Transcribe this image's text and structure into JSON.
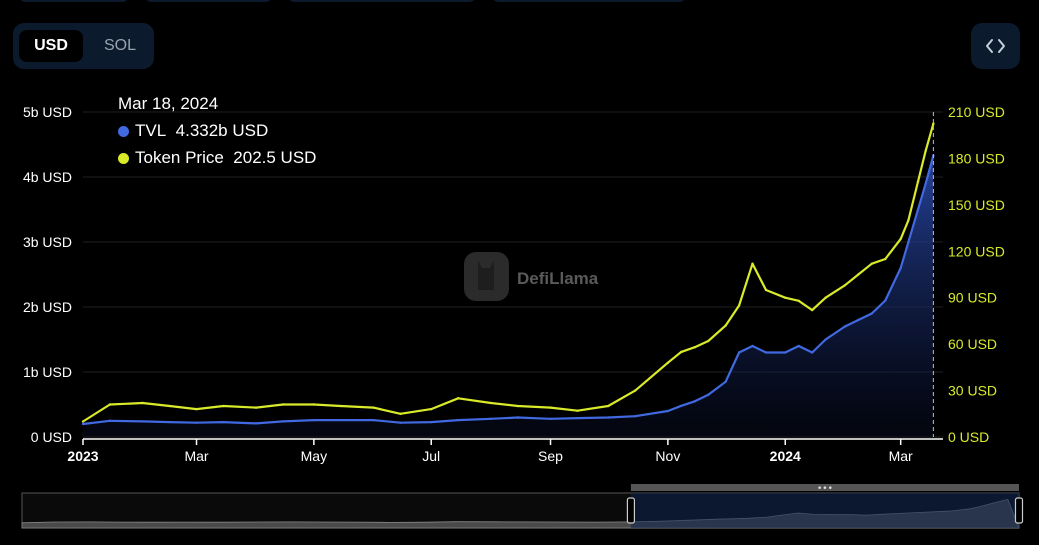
{
  "currency_toggle": {
    "options": [
      "USD",
      "SOL"
    ],
    "selected": "USD"
  },
  "embed_button": {
    "icon": "code-brackets-icon"
  },
  "tooltip": {
    "date": "Mar 18, 2024",
    "rows": [
      {
        "label": "TVL",
        "value": "4.332b USD",
        "color": "#4169e1"
      },
      {
        "label": "Token Price",
        "value": "202.5 USD",
        "color": "#d8ea29"
      }
    ]
  },
  "watermark": {
    "text": "DefiLlama"
  },
  "chart_data": {
    "type": "line",
    "title": "",
    "x": [
      "2023-01-01",
      "2023-01-15",
      "2023-02-01",
      "2023-02-15",
      "2023-03-01",
      "2023-03-15",
      "2023-04-01",
      "2023-04-15",
      "2023-05-01",
      "2023-05-15",
      "2023-06-01",
      "2023-06-15",
      "2023-07-01",
      "2023-07-15",
      "2023-08-01",
      "2023-08-15",
      "2023-09-01",
      "2023-09-15",
      "2023-10-01",
      "2023-10-15",
      "2023-11-01",
      "2023-11-08",
      "2023-11-15",
      "2023-11-22",
      "2023-12-01",
      "2023-12-08",
      "2023-12-15",
      "2023-12-22",
      "2024-01-01",
      "2024-01-08",
      "2024-01-15",
      "2024-01-22",
      "2024-02-01",
      "2024-02-08",
      "2024-02-15",
      "2024-02-22",
      "2024-03-01",
      "2024-03-05",
      "2024-03-10",
      "2024-03-14",
      "2024-03-18"
    ],
    "x_tick_labels": [
      "2023",
      "Mar",
      "May",
      "Jul",
      "Sep",
      "Nov",
      "2024",
      "Mar"
    ],
    "x_tick_dates": [
      "2023-01-01",
      "2023-03-01",
      "2023-05-01",
      "2023-07-01",
      "2023-09-01",
      "2023-11-01",
      "2024-01-01",
      "2024-03-01"
    ],
    "y_left": {
      "label": "",
      "ticks": [
        "0 USD",
        "1b USD",
        "2b USD",
        "3b USD",
        "4b USD",
        "5b USD"
      ],
      "range": [
        0,
        5000000000
      ]
    },
    "y_right": {
      "label": "",
      "ticks": [
        "0 USD",
        "30 USD",
        "60 USD",
        "90 USD",
        "120 USD",
        "150 USD",
        "180 USD",
        "210 USD"
      ],
      "range": [
        0,
        210
      ]
    },
    "series": [
      {
        "name": "TVL",
        "axis": "left",
        "color": "#4169e1",
        "values": [
          200000000,
          250000000,
          240000000,
          230000000,
          220000000,
          230000000,
          210000000,
          240000000,
          260000000,
          260000000,
          260000000,
          220000000,
          230000000,
          260000000,
          280000000,
          300000000,
          280000000,
          290000000,
          300000000,
          320000000,
          400000000,
          480000000,
          550000000,
          650000000,
          850000000,
          1300000000,
          1400000000,
          1300000000,
          1300000000,
          1400000000,
          1300000000,
          1500000000,
          1700000000,
          1800000000,
          1900000000,
          2100000000,
          2600000000,
          3000000000,
          3500000000,
          3900000000,
          4332000000
        ]
      },
      {
        "name": "Token Price",
        "axis": "right",
        "color": "#d8ea29",
        "values": [
          10,
          21,
          22,
          20,
          18,
          20,
          19,
          21,
          21,
          20,
          19,
          15,
          18,
          25,
          22,
          20,
          19,
          17,
          20,
          30,
          48,
          55,
          58,
          62,
          72,
          85,
          112,
          95,
          90,
          88,
          82,
          90,
          98,
          105,
          112,
          115,
          128,
          140,
          165,
          185,
          202.5
        ]
      }
    ],
    "hover_date": "2024-03-18",
    "grid": true,
    "brush": {
      "selection": [
        "2023-10-01",
        "2024-03-18"
      ]
    }
  }
}
